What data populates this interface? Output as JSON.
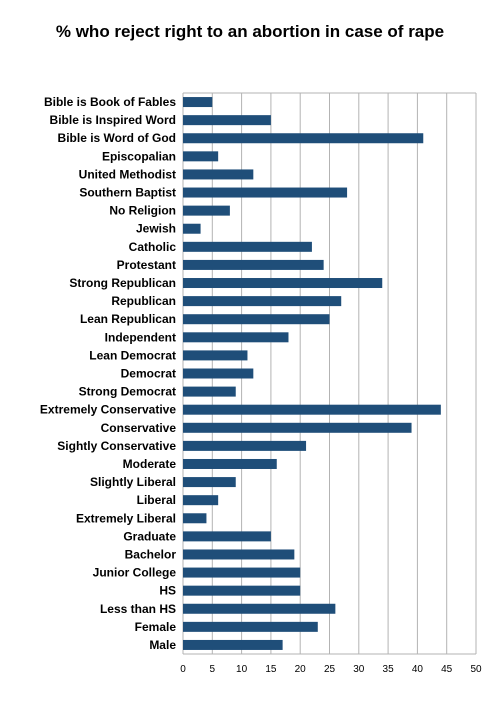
{
  "chart_data": {
    "type": "bar",
    "orientation": "horizontal",
    "title": "% who reject right to an abortion in case of rape",
    "xlabel": "",
    "ylabel": "",
    "xlim": [
      0,
      50
    ],
    "x_ticks": [
      "0",
      "5",
      "10",
      "15",
      "20",
      "25",
      "30",
      "35",
      "40",
      "45",
      "50"
    ],
    "grid": true,
    "legend": "none",
    "bar_color": "#1f4e79",
    "grid_color": "#b3b3b3",
    "categories": [
      "Bible is Book of Fables",
      "Bible is Inspired Word",
      "Bible is Word of God",
      "Episcopalian",
      "United Methodist",
      "Southern Baptist",
      "No Religion",
      "Jewish",
      "Catholic",
      "Protestant",
      "Strong Republican",
      "Republican",
      "Lean Republican",
      "Independent",
      "Lean Democrat",
      "Democrat",
      "Strong Democrat",
      "Extremely Conservative",
      "Conservative",
      "Sightly Conservative",
      "Moderate",
      "Slightly Liberal",
      "Liberal",
      "Extremely Liberal",
      "Graduate",
      "Bachelor",
      "Junior College",
      "HS",
      "Less than HS",
      "Female",
      "Male"
    ],
    "values": [
      5,
      15,
      41,
      6,
      12,
      28,
      8,
      3,
      22,
      24,
      34,
      27,
      25,
      18,
      11,
      12,
      9,
      44,
      39,
      21,
      16,
      9,
      6,
      4,
      15,
      19,
      20,
      20,
      26,
      23,
      17
    ]
  }
}
